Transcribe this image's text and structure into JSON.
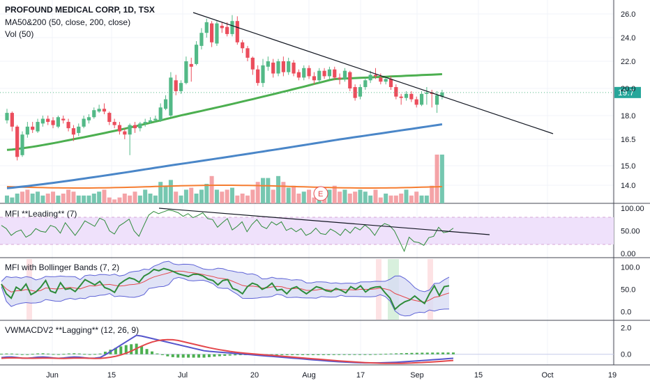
{
  "header": {
    "symbol_title": "PROFOUND MEDICAL CORP, 1D, TSX",
    "ma_label": "MA50&200 (50, close, 200, close)",
    "vol_label": "Vol (50)"
  },
  "panels": {
    "mfi_leading": "MFI **Leading** (7)",
    "mfi_bb": "MFI with Bollinger Bands (7, 2)",
    "vwmacd": "VWMACDV2 **Lagging** (12, 26, 9)"
  },
  "price_badge": "19.7",
  "earnings_marker": "E",
  "colors": {
    "up": "#53b987",
    "down": "#eb4d5c",
    "vol_up": "#76c7b0",
    "vol_down": "#f4a3a7",
    "ma50": "#4caf50",
    "ma200": "#4a86c8",
    "vol_ma": "#f57c30",
    "trend": "#131722",
    "mfi_fill": "#efe1fb",
    "bb_fill": "#d8dcf4",
    "bb_line": "#5d62d6",
    "mfi_line": "#2e8b3a",
    "basis": "#e4474b",
    "macd": "#5555cc",
    "signal": "#e4474b",
    "hist": "#4caf50"
  },
  "chart_data": [
    {
      "type": "candlestick",
      "title": "PROFOUND MEDICAL CORP, 1D, TSX",
      "price_axis_ticks": [
        "26.0",
        "24.0",
        "22.0",
        "20.0",
        "18.0",
        "16.5",
        "15.0",
        "14.0"
      ],
      "volume_axis_ticks": [],
      "time_axis_ticks": [
        "Jun",
        "15",
        "Jul",
        "20",
        "Aug",
        "17",
        "Sep",
        "15",
        "Oct",
        "19"
      ],
      "last_price": 19.7,
      "series": [
        {
          "name": "MA50",
          "values_start": 15.8,
          "values_end": 21.0
        },
        {
          "name": "MA200",
          "values_start": 13.7,
          "values_end": 17.5
        }
      ],
      "candles": [
        [
          17.7,
          18.2,
          18.5,
          17.5
        ],
        [
          18.2,
          17.3,
          18.3,
          17.0
        ],
        [
          17.3,
          15.5,
          17.4,
          15.3
        ],
        [
          15.6,
          16.8,
          17.0,
          15.5
        ],
        [
          16.8,
          17.3,
          17.6,
          16.6
        ],
        [
          17.3,
          17.1,
          17.6,
          16.9
        ],
        [
          17.0,
          17.6,
          17.8,
          16.9
        ],
        [
          17.5,
          17.8,
          18.0,
          17.3
        ],
        [
          17.8,
          17.6,
          18.0,
          17.4
        ],
        [
          17.7,
          17.4,
          17.9,
          17.2
        ],
        [
          17.3,
          17.9,
          18.0,
          17.2
        ],
        [
          17.8,
          17.7,
          18.0,
          17.5
        ],
        [
          17.6,
          17.2,
          17.8,
          17.0
        ],
        [
          17.2,
          16.8,
          17.4,
          16.4
        ],
        [
          16.9,
          17.3,
          17.5,
          16.7
        ],
        [
          17.3,
          17.8,
          18.0,
          17.2
        ],
        [
          17.7,
          17.9,
          18.1,
          17.5
        ],
        [
          17.9,
          18.4,
          18.6,
          17.8
        ],
        [
          18.3,
          18.5,
          18.8,
          18.2
        ],
        [
          18.5,
          18.3,
          18.9,
          18.1
        ],
        [
          18.2,
          17.6,
          18.3,
          17.4
        ],
        [
          17.6,
          17.4,
          17.8,
          17.2
        ],
        [
          17.4,
          17.0,
          17.6,
          16.8
        ],
        [
          17.0,
          16.8,
          17.2,
          16.5
        ],
        [
          16.8,
          17.4,
          17.5,
          15.6
        ],
        [
          17.4,
          17.2,
          17.6,
          16.9
        ],
        [
          17.2,
          17.5,
          17.6,
          17.0
        ],
        [
          17.5,
          17.6,
          17.8,
          17.3
        ],
        [
          17.6,
          17.7,
          17.9,
          17.5
        ],
        [
          17.7,
          17.8,
          18.0,
          17.6
        ],
        [
          17.7,
          18.6,
          18.9,
          17.6
        ],
        [
          18.5,
          19.2,
          19.5,
          18.4
        ],
        [
          18.0,
          20.8,
          21.2,
          17.9
        ],
        [
          20.6,
          19.8,
          21.0,
          19.5
        ],
        [
          19.8,
          20.4,
          20.6,
          19.6
        ],
        [
          20.4,
          22.0,
          22.4,
          20.3
        ],
        [
          21.8,
          21.6,
          22.3,
          20.5
        ],
        [
          21.8,
          23.4,
          23.7,
          21.7
        ],
        [
          23.3,
          24.4,
          24.8,
          23.0
        ],
        [
          24.4,
          25.3,
          25.6,
          24.0
        ],
        [
          25.2,
          23.6,
          25.4,
          23.2
        ],
        [
          23.5,
          25.2,
          25.4,
          23.3
        ],
        [
          25.0,
          24.8,
          25.3,
          24.4
        ],
        [
          24.9,
          24.3,
          25.3,
          24.1
        ],
        [
          24.3,
          25.4,
          25.9,
          24.1
        ],
        [
          25.4,
          23.6,
          25.8,
          23.4
        ],
        [
          23.6,
          23.1,
          23.8,
          22.7
        ],
        [
          23.1,
          22.3,
          23.3,
          22.0
        ],
        [
          22.3,
          21.4,
          22.4,
          21.0
        ],
        [
          21.4,
          20.4,
          21.7,
          20.2
        ],
        [
          20.4,
          21.7,
          22.2,
          20.1
        ],
        [
          21.6,
          22.0,
          22.4,
          21.3
        ],
        [
          21.9,
          21.1,
          22.2,
          20.8
        ],
        [
          21.1,
          22.0,
          22.2,
          20.9
        ],
        [
          22.0,
          21.2,
          22.4,
          20.9
        ],
        [
          21.2,
          22.0,
          22.3,
          21.0
        ],
        [
          21.9,
          21.1,
          22.1,
          20.9
        ],
        [
          21.2,
          20.8,
          21.4,
          20.6
        ],
        [
          20.8,
          21.5,
          21.7,
          20.6
        ],
        [
          21.5,
          20.9,
          21.7,
          20.7
        ],
        [
          20.9,
          20.6,
          21.2,
          20.3
        ],
        [
          20.6,
          21.3,
          21.5,
          20.4
        ],
        [
          21.3,
          20.9,
          21.5,
          20.7
        ],
        [
          20.9,
          21.4,
          21.6,
          20.7
        ],
        [
          21.4,
          20.8,
          21.6,
          20.6
        ],
        [
          20.8,
          20.7,
          21.1,
          20.3
        ],
        [
          20.7,
          21.3,
          21.5,
          20.5
        ],
        [
          21.2,
          20.0,
          21.3,
          19.8
        ],
        [
          20.1,
          19.3,
          20.3,
          19.1
        ],
        [
          19.4,
          20.1,
          20.3,
          19.2
        ],
        [
          20.1,
          20.6,
          20.8,
          19.9
        ],
        [
          20.6,
          21.0,
          21.3,
          20.4
        ],
        [
          21.0,
          20.9,
          21.5,
          20.7
        ],
        [
          20.8,
          20.5,
          21.1,
          20.3
        ],
        [
          20.5,
          20.7,
          20.8,
          20.3
        ],
        [
          20.7,
          20.1,
          20.9,
          19.9
        ],
        [
          20.1,
          19.4,
          20.3,
          19.2
        ],
        [
          19.4,
          19.3,
          19.6,
          18.8
        ],
        [
          19.3,
          19.6,
          19.8,
          19.1
        ],
        [
          19.6,
          19.2,
          19.8,
          19.0
        ],
        [
          19.2,
          18.8,
          19.4,
          18.6
        ],
        [
          18.8,
          19.6,
          19.8,
          18.7
        ],
        [
          19.6,
          19.7,
          20.1,
          18.8
        ],
        [
          19.7,
          19.6,
          19.9,
          18.6
        ],
        [
          18.8,
          19.5,
          19.8,
          18.2
        ],
        [
          19.4,
          19.7,
          19.9,
          19.2
        ]
      ],
      "volume": [
        1,
        1,
        1,
        0,
        0,
        1,
        1,
        1,
        0,
        0,
        1,
        0,
        0,
        0,
        1,
        1,
        1,
        1,
        1,
        0,
        0,
        0,
        0,
        0,
        0,
        0,
        1,
        1,
        1,
        1,
        1,
        1,
        1,
        0,
        1,
        1,
        0,
        1,
        1,
        1,
        0,
        1,
        0,
        0,
        1,
        0,
        0,
        0,
        0,
        0,
        1,
        1,
        0,
        1,
        0,
        1,
        0,
        0,
        1,
        0,
        0,
        1,
        0,
        1,
        0,
        0,
        1,
        0,
        0,
        1,
        1,
        1,
        0,
        0,
        1,
        0,
        0,
        0,
        1,
        0,
        0,
        1,
        1,
        0,
        0,
        1
      ],
      "volume_values": [
        13.6,
        13.5,
        13.7,
        13.8,
        13.9,
        13.7,
        13.8,
        13.6,
        13.7,
        13.8,
        13.6,
        13.7,
        13.9,
        13.8,
        13.6,
        13.6,
        13.6,
        13.7,
        13.8,
        13.9,
        13.5,
        13.4,
        13.5,
        13.7,
        13.6,
        13.8,
        13.6,
        13.9,
        13.7,
        13.6,
        14.3,
        14.1,
        14.4,
        13.8,
        13.6,
        13.9,
        14.0,
        13.7,
        13.9,
        14.2,
        14.6,
        13.9,
        13.8,
        13.9,
        14.0,
        13.6,
        13.7,
        13.6,
        13.9,
        14.3,
        14.5,
        14.5,
        13.9,
        14.6,
        14.3,
        14.0,
        14.1,
        13.7,
        13.8,
        13.9,
        13.5,
        13.6,
        13.7,
        13.9,
        14.1,
        13.8,
        13.9,
        13.7,
        13.8,
        13.9,
        13.8,
        13.6,
        13.9,
        13.5,
        13.7,
        13.6,
        13.6,
        13.7,
        13.9,
        13.6,
        13.8,
        13.6,
        13.6,
        14.1,
        15.7,
        15.7
      ]
    },
    {
      "type": "line",
      "title": "MFI **Leading** (7)",
      "y_ticks": [
        "100.00",
        "50.00",
        "0.00"
      ],
      "ylim": [
        0,
        100
      ],
      "bands": [
        20,
        80
      ],
      "values": [
        62,
        55,
        40,
        48,
        52,
        36,
        42,
        55,
        49,
        47,
        62,
        58,
        45,
        68,
        54,
        40,
        55,
        72,
        66,
        60,
        78,
        73,
        50,
        43,
        61,
        68,
        76,
        50,
        38,
        62,
        85,
        93,
        88,
        92,
        96,
        94,
        90,
        82,
        88,
        79,
        84,
        90,
        77,
        75,
        58,
        68,
        77,
        52,
        60,
        70,
        48,
        64,
        75,
        60,
        55,
        70,
        63,
        70,
        51,
        56,
        48,
        55,
        40,
        45,
        56,
        44,
        42,
        54,
        48,
        40,
        54,
        45,
        58,
        52,
        63,
        54,
        40,
        58,
        66,
        62,
        50,
        28,
        5,
        36,
        26,
        24,
        18,
        35,
        38,
        58,
        46,
        48,
        56
      ]
    },
    {
      "type": "line",
      "title": "MFI with Bollinger Bands (7, 2)",
      "y_ticks": [
        "100.0",
        "50.0",
        "0.0"
      ],
      "ylim": [
        -20,
        120
      ],
      "values": [
        62,
        40,
        30,
        55,
        48,
        62,
        38,
        44,
        55,
        70,
        46,
        42,
        65,
        50,
        52,
        45,
        58,
        72,
        66,
        60,
        68,
        54,
        50,
        43,
        62,
        70,
        76,
        73,
        66,
        80,
        86,
        95,
        92,
        97,
        94,
        90,
        85,
        82,
        79,
        84,
        84,
        80,
        73,
        70,
        60,
        70,
        72,
        52,
        48,
        40,
        56,
        64,
        60,
        50,
        55,
        64,
        48,
        50,
        40,
        52,
        56,
        47,
        40,
        48,
        56,
        53,
        47,
        45,
        52,
        48,
        42,
        56,
        50,
        58,
        44,
        52,
        55,
        56,
        42,
        30,
        5,
        15,
        22,
        26,
        35,
        26,
        18,
        40,
        58,
        36,
        56,
        58
      ],
      "series": [
        {
          "name": "",
          "values": []
        }
      ]
    },
    {
      "type": "line",
      "title": "VWMACDV2 **Lagging** (12, 26, 9)",
      "y_ticks": [
        "2.0",
        "0.0"
      ],
      "ylim": [
        -0.8,
        2.5
      ]
    }
  ]
}
